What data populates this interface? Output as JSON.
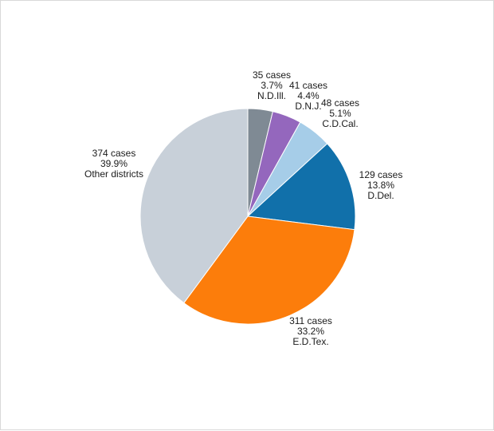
{
  "chart_data": {
    "type": "pie",
    "start_angle_deg": 0,
    "direction": "clockwise",
    "slices": [
      {
        "label": "N.D.Ill.",
        "cases": "35 cases",
        "percent": "3.7%",
        "value": 35,
        "color": "#7f8a94"
      },
      {
        "label": "D.N.J.",
        "cases": "41 cases",
        "percent": "4.4%",
        "value": 41,
        "color": "#9467bd"
      },
      {
        "label": "C.D.Cal.",
        "cases": "48 cases",
        "percent": "5.1%",
        "value": 48,
        "color": "#a6cde8"
      },
      {
        "label": "D.Del.",
        "cases": "129 cases",
        "percent": "13.8%",
        "value": 129,
        "color": "#1170aa"
      },
      {
        "label": "E.D.Tex.",
        "cases": "311 cases",
        "percent": "33.2%",
        "value": 311,
        "color": "#fc7d0b"
      },
      {
        "label": "Other districts",
        "cases": "374 cases",
        "percent": "39.9%",
        "value": 374,
        "color": "#c8d0d9"
      }
    ]
  }
}
